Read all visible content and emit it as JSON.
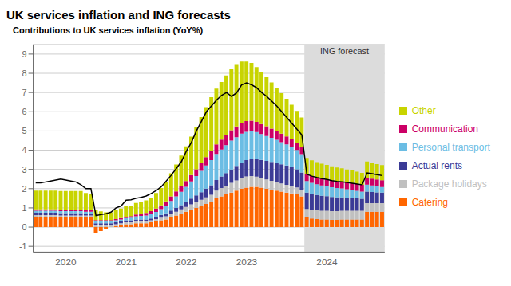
{
  "chart_data": {
    "type": "bar",
    "title": "UK services inflation and ING forecasts",
    "subtitle": "Contributions to UK services inflation (YoY%)",
    "stacked": true,
    "grid": true,
    "legend": "right",
    "ylim": [
      -1.3,
      9.5
    ],
    "yticks": [
      -1,
      0,
      1,
      2,
      3,
      4,
      5,
      6,
      7,
      8,
      9
    ],
    "categories": [
      null,
      null,
      null,
      null,
      null,
      null,
      "2020",
      null,
      null,
      null,
      null,
      null,
      null,
      null,
      null,
      null,
      null,
      null,
      "2021",
      null,
      null,
      null,
      null,
      null,
      null,
      null,
      null,
      null,
      null,
      null,
      "2022",
      null,
      null,
      null,
      null,
      null,
      null,
      null,
      null,
      null,
      null,
      null,
      "2023",
      null,
      null,
      null,
      null,
      null,
      null,
      null,
      null,
      null,
      null,
      null,
      null,
      null,
      null,
      null,
      "2024",
      null,
      null,
      null,
      null,
      null,
      null,
      null,
      null,
      null,
      null,
      null
    ],
    "annotations": [
      {
        "text": "ING forecast",
        "span": [
          54,
          69
        ],
        "color": "#DCDCDC"
      }
    ],
    "series": [
      {
        "name": "Catering",
        "type": "bar",
        "color": "#FF6600",
        "values": [
          0.52,
          0.52,
          0.52,
          0.52,
          0.52,
          0.5,
          0.5,
          0.5,
          0.5,
          0.5,
          0.5,
          0.5,
          -0.3,
          -0.2,
          -0.1,
          0.0,
          0.05,
          0.1,
          0.15,
          0.15,
          0.2,
          0.2,
          0.2,
          0.25,
          0.3,
          0.35,
          0.4,
          0.5,
          0.6,
          0.7,
          0.8,
          0.9,
          1.0,
          1.1,
          1.2,
          1.3,
          1.5,
          1.6,
          1.7,
          1.8,
          1.9,
          2.0,
          2.05,
          2.1,
          2.1,
          2.05,
          2.0,
          1.95,
          1.9,
          1.85,
          1.8,
          1.75,
          1.7,
          1.6,
          0.5,
          0.45,
          0.42,
          0.4,
          0.4,
          0.38,
          0.38,
          0.4,
          0.4,
          0.4,
          0.4,
          0.4,
          0.8,
          0.8,
          0.8,
          0.8
        ]
      },
      {
        "name": "Package holidays",
        "type": "bar",
        "color": "#C0C0C0",
        "values": [
          0.1,
          0.1,
          0.1,
          0.1,
          0.1,
          0.1,
          0.1,
          0.1,
          0.1,
          0.1,
          0.1,
          0.1,
          0.1,
          0.1,
          0.1,
          0.1,
          0.1,
          0.1,
          0.1,
          0.1,
          0.1,
          0.1,
          0.1,
          0.1,
          0.12,
          0.14,
          0.16,
          0.18,
          0.2,
          0.22,
          0.25,
          0.28,
          0.3,
          0.32,
          0.35,
          0.38,
          0.4,
          0.43,
          0.46,
          0.5,
          0.53,
          0.56,
          0.58,
          0.55,
          0.52,
          0.5,
          0.48,
          0.46,
          0.44,
          0.42,
          0.4,
          0.38,
          0.36,
          0.34,
          0.45,
          0.45,
          0.45,
          0.45,
          0.45,
          0.45,
          0.45,
          0.45,
          0.45,
          0.45,
          0.45,
          0.45,
          0.45,
          0.45,
          0.45,
          0.45
        ]
      },
      {
        "name": "Actual rents",
        "type": "bar",
        "color": "#3B3B96",
        "values": [
          0.13,
          0.13,
          0.13,
          0.13,
          0.13,
          0.13,
          0.13,
          0.13,
          0.13,
          0.13,
          0.1,
          0.1,
          0.1,
          0.1,
          0.1,
          0.1,
          0.1,
          0.1,
          0.1,
          0.1,
          0.1,
          0.1,
          0.1,
          0.1,
          0.12,
          0.14,
          0.16,
          0.18,
          0.2,
          0.22,
          0.25,
          0.3,
          0.35,
          0.4,
          0.45,
          0.5,
          0.55,
          0.6,
          0.65,
          0.7,
          0.75,
          0.8,
          0.85,
          0.9,
          0.92,
          0.94,
          0.96,
          0.98,
          1.0,
          1.0,
          1.0,
          0.98,
          0.95,
          0.9,
          0.85,
          0.82,
          0.8,
          0.78,
          0.76,
          0.74,
          0.72,
          0.7,
          0.68,
          0.66,
          0.64,
          0.62,
          0.6,
          0.58,
          0.56,
          0.54
        ]
      },
      {
        "name": "Personal transport",
        "type": "bar",
        "color": "#6BBDE4",
        "values": [
          0.1,
          0.1,
          0.1,
          0.1,
          0.1,
          0.1,
          0.1,
          0.1,
          0.1,
          0.1,
          0.1,
          0.1,
          0.1,
          0.1,
          0.1,
          0.1,
          0.1,
          0.1,
          0.12,
          0.14,
          0.16,
          0.18,
          0.2,
          0.22,
          0.25,
          0.3,
          0.4,
          0.5,
          0.6,
          0.7,
          0.8,
          0.9,
          1.0,
          1.1,
          1.2,
          1.3,
          1.35,
          1.4,
          1.45,
          1.5,
          1.5,
          1.5,
          1.48,
          1.45,
          1.4,
          1.35,
          1.3,
          1.25,
          1.2,
          1.15,
          1.1,
          1.05,
          1.0,
          0.95,
          0.6,
          0.58,
          0.56,
          0.54,
          0.52,
          0.5,
          0.48,
          0.46,
          0.44,
          0.42,
          0.4,
          0.38,
          0.36,
          0.34,
          0.32,
          0.3
        ]
      },
      {
        "name": "Communication",
        "type": "bar",
        "color": "#CC0066",
        "values": [
          0.07,
          0.07,
          0.07,
          0.07,
          0.07,
          0.07,
          0.07,
          0.07,
          0.07,
          0.07,
          0.07,
          0.07,
          0.07,
          0.07,
          0.07,
          0.07,
          0.07,
          0.07,
          0.07,
          0.08,
          0.1,
          0.12,
          0.14,
          0.16,
          0.18,
          0.2,
          0.22,
          0.24,
          0.26,
          0.28,
          0.3,
          0.33,
          0.36,
          0.4,
          0.44,
          0.48,
          0.5,
          0.52,
          0.53,
          0.54,
          0.55,
          0.55,
          0.55,
          0.54,
          0.53,
          0.52,
          0.5,
          0.48,
          0.46,
          0.44,
          0.42,
          0.4,
          0.38,
          0.36,
          0.35,
          0.35,
          0.35,
          0.35,
          0.35,
          0.35,
          0.35,
          0.35,
          0.35,
          0.35,
          0.35,
          0.35,
          0.35,
          0.35,
          0.35,
          0.35
        ]
      },
      {
        "name": "Other",
        "type": "bar",
        "color": "#C8D400",
        "values": [
          0.98,
          0.98,
          0.98,
          0.98,
          0.98,
          0.98,
          0.98,
          0.98,
          0.98,
          0.98,
          0.9,
          0.85,
          0.5,
          0.45,
          0.4,
          0.4,
          0.45,
          0.5,
          0.55,
          0.55,
          0.6,
          0.6,
          0.65,
          0.7,
          0.8,
          0.9,
          1.0,
          1.2,
          1.4,
          1.6,
          1.8,
          2.0,
          2.2,
          2.4,
          2.6,
          2.8,
          2.9,
          3.0,
          3.1,
          3.2,
          3.25,
          3.2,
          3.1,
          3.0,
          2.85,
          2.7,
          2.55,
          2.4,
          2.25,
          2.1,
          1.95,
          1.8,
          1.65,
          1.55,
          0.85,
          0.82,
          0.8,
          0.78,
          0.76,
          0.74,
          0.72,
          0.7,
          0.68,
          0.66,
          0.64,
          0.62,
          0.85,
          0.83,
          0.8,
          0.78
        ]
      },
      {
        "type": "line",
        "color": "#000000",
        "values": [
          2.3,
          2.3,
          2.35,
          2.4,
          2.45,
          2.5,
          2.45,
          2.4,
          2.35,
          2.2,
          2.0,
          2.0,
          0.6,
          0.65,
          0.7,
          0.78,
          1.0,
          1.1,
          1.4,
          1.42,
          1.5,
          1.55,
          1.62,
          1.75,
          1.9,
          2.1,
          2.4,
          2.7,
          3.05,
          3.4,
          3.95,
          4.4,
          5.0,
          5.5,
          6.0,
          6.3,
          6.6,
          6.85,
          7.0,
          6.8,
          6.98,
          7.4,
          7.5,
          7.4,
          7.25,
          7.0,
          6.8,
          6.55,
          6.3,
          6.0,
          5.7,
          5.4,
          5.1,
          4.8,
          2.75,
          2.65,
          2.58,
          2.52,
          2.48,
          2.42,
          2.38,
          2.35,
          2.32,
          2.28,
          2.24,
          2.2,
          2.82,
          2.78,
          2.73,
          2.68
        ]
      }
    ]
  }
}
